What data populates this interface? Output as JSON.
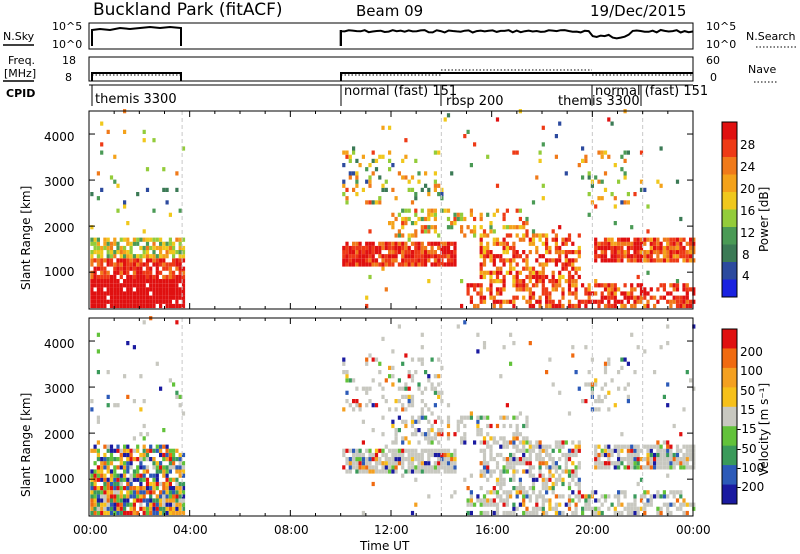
{
  "header": {
    "title": "Buckland Park (fitACF)",
    "beam": "Beam 09",
    "date": "19/Dec/2015"
  },
  "param_panels": {
    "nsky": {
      "label": "N.Sky",
      "ticks": [
        "10^5",
        "10^0"
      ]
    },
    "nsearch": {
      "label": "N.Search",
      "ticks": [
        "10^5",
        "10^0"
      ]
    },
    "freq": {
      "label_top": "Freq.",
      "label_bottom": "[MHz]",
      "ticks": [
        "18",
        "8"
      ]
    },
    "nave": {
      "label": "Nave",
      "ticks": [
        "60",
        "0"
      ]
    },
    "cpid": {
      "label": "CPID",
      "modes": [
        {
          "label": "themis 3300",
          "start_hour": 0.0
        },
        {
          "label": "normal (fast) 151",
          "start_hour": 10.0
        },
        {
          "label": "rbsp 200",
          "start_hour": 14.0
        },
        {
          "label": "themis 3300",
          "start_hour": 20.0
        },
        {
          "label": "normal (fast) 151",
          "start_hour": 22.0
        }
      ]
    }
  },
  "chart_data": [
    {
      "type": "heatmap",
      "name": "power-panel",
      "ylabel": "Slant Range [km]",
      "ylim": [
        200,
        4500
      ],
      "yticks": [
        1000,
        2000,
        3000,
        4000
      ],
      "xlim": [
        0,
        24
      ],
      "xticks": [
        "00:00",
        "04:00",
        "08:00",
        "12:00",
        "16:00",
        "20:00",
        "00:00"
      ],
      "data_gap_hours": [
        3.7,
        10.0
      ],
      "colorbar": {
        "label": "Power [dB]",
        "range": [
          0,
          32
        ],
        "ticks": [
          "4",
          "8",
          "12",
          "16",
          "20",
          "24",
          "28"
        ],
        "colors": [
          "#1a22e0",
          "#2c4a9e",
          "#3b7a55",
          "#4a9a55",
          "#93cc3a",
          "#f0c81c",
          "#f4a21a",
          "#f07a1a",
          "#ee3a16",
          "#e01010"
        ]
      }
    },
    {
      "type": "heatmap",
      "name": "velocity-panel",
      "ylabel": "Slant Range [km]",
      "ylim": [
        200,
        4500
      ],
      "yticks": [
        1000,
        2000,
        3000,
        4000
      ],
      "xlim": [
        0,
        24
      ],
      "xticks": [
        "00:00",
        "04:00",
        "08:00",
        "12:00",
        "16:00",
        "20:00",
        "00:00"
      ],
      "xlabel": "Time UT",
      "colorbar": {
        "label": "Velocity [m s⁻¹]",
        "ticks": [
          "200",
          "100",
          "50",
          "15",
          "-15",
          "-50",
          "-100",
          "-200"
        ],
        "colors": [
          "#1a1aa0",
          "#2c5ab8",
          "#3a9a5a",
          "#62c23a",
          "#c8c8c0",
          "#f6c01a",
          "#f4a020",
          "#f06a10",
          "#e01010"
        ]
      }
    }
  ]
}
